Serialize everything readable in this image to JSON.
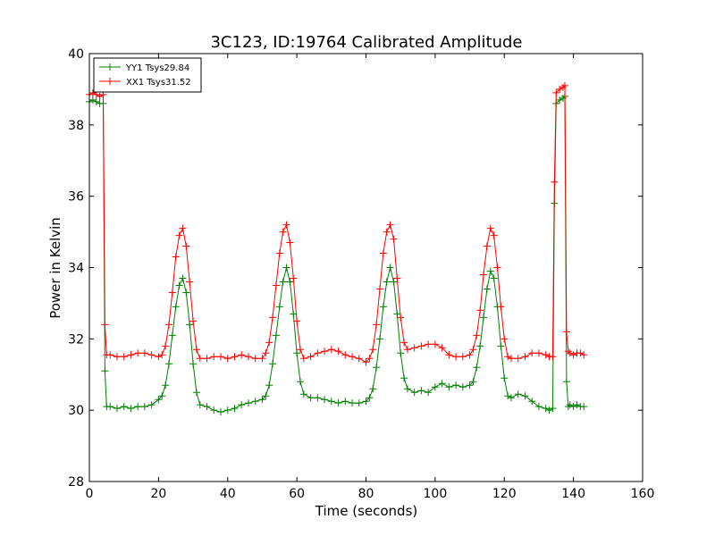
{
  "chart_data": {
    "type": "line",
    "title": "3C123, ID:19764 Calibrated Amplitude",
    "xlabel": "Time (seconds)",
    "ylabel": "Power in Kelvin",
    "xlim": [
      0,
      160
    ],
    "ylim": [
      28,
      40
    ],
    "xticks": [
      0,
      20,
      40,
      60,
      80,
      100,
      120,
      140,
      160
    ],
    "yticks": [
      28,
      30,
      32,
      34,
      36,
      38,
      40
    ],
    "grid": false,
    "legend_position": "top-left",
    "marker": "plus",
    "series": [
      {
        "name": "YY1 Tsys29.84",
        "color": "#008000",
        "x": [
          0,
          1,
          2,
          3,
          4,
          4.5,
          5,
          6,
          8,
          10,
          12,
          14,
          16,
          18,
          20,
          21,
          22,
          23,
          24,
          25,
          26,
          27,
          28,
          29,
          30,
          31,
          32,
          34,
          36,
          38,
          40,
          42,
          44,
          46,
          48,
          50,
          51,
          52,
          53,
          54,
          55,
          56,
          57,
          58,
          59,
          60,
          61,
          62,
          64,
          66,
          68,
          70,
          72,
          74,
          76,
          78,
          80,
          81,
          82,
          83,
          84,
          85,
          86,
          87,
          88,
          89,
          90,
          91,
          92,
          94,
          96,
          98,
          100,
          102,
          104,
          106,
          108,
          110,
          111,
          112,
          113,
          114,
          115,
          116,
          117,
          118,
          119,
          120,
          121,
          122,
          124,
          126,
          128,
          130,
          132,
          133,
          134,
          134.5,
          135,
          136,
          137,
          137.5,
          138,
          138.5,
          139,
          140,
          141,
          142,
          143
        ],
        "values": [
          38.65,
          38.7,
          38.65,
          38.6,
          38.6,
          31.1,
          30.1,
          30.1,
          30.05,
          30.1,
          30.05,
          30.1,
          30.1,
          30.15,
          30.3,
          30.4,
          30.7,
          31.3,
          32.1,
          32.9,
          33.5,
          33.7,
          33.3,
          32.4,
          31.3,
          30.5,
          30.15,
          30.1,
          30.0,
          29.95,
          30.0,
          30.05,
          30.15,
          30.2,
          30.25,
          30.3,
          30.4,
          30.7,
          31.3,
          32.1,
          32.9,
          33.6,
          34.0,
          33.6,
          32.7,
          31.6,
          30.8,
          30.45,
          30.35,
          30.35,
          30.3,
          30.25,
          30.2,
          30.25,
          30.2,
          30.2,
          30.25,
          30.35,
          30.6,
          31.2,
          32.0,
          32.9,
          33.6,
          34.0,
          33.6,
          32.7,
          31.6,
          30.9,
          30.6,
          30.5,
          30.55,
          30.5,
          30.65,
          30.75,
          30.65,
          30.7,
          30.65,
          30.7,
          30.8,
          31.2,
          31.8,
          32.6,
          33.4,
          33.9,
          33.7,
          32.9,
          31.8,
          30.9,
          30.4,
          30.35,
          30.45,
          30.4,
          30.25,
          30.1,
          30.05,
          30.0,
          30.05,
          35.8,
          38.6,
          38.7,
          38.75,
          38.8,
          30.8,
          30.1,
          30.15,
          30.1,
          30.15,
          30.1,
          30.1
        ]
      },
      {
        "name": "XX1 Tsys31.52",
        "color": "#ff0000",
        "x": [
          0,
          1,
          2,
          3,
          4,
          4.5,
          5,
          6,
          8,
          10,
          12,
          14,
          16,
          18,
          20,
          21,
          22,
          23,
          24,
          25,
          26,
          27,
          28,
          29,
          30,
          31,
          32,
          34,
          36,
          38,
          40,
          42,
          44,
          46,
          48,
          50,
          51,
          52,
          53,
          54,
          55,
          56,
          57,
          58,
          59,
          60,
          61,
          62,
          64,
          66,
          68,
          70,
          72,
          74,
          76,
          78,
          80,
          81,
          82,
          83,
          84,
          85,
          86,
          87,
          88,
          89,
          90,
          91,
          92,
          94,
          96,
          98,
          100,
          102,
          104,
          106,
          108,
          110,
          111,
          112,
          113,
          114,
          115,
          116,
          117,
          118,
          119,
          120,
          121,
          122,
          124,
          126,
          128,
          130,
          132,
          133,
          134,
          134.5,
          135,
          136,
          137,
          137.5,
          138,
          138.5,
          139,
          140,
          141,
          142,
          143
        ],
        "values": [
          38.85,
          38.9,
          38.85,
          38.8,
          38.85,
          32.4,
          31.55,
          31.55,
          31.5,
          31.5,
          31.55,
          31.6,
          31.6,
          31.55,
          31.5,
          31.55,
          31.8,
          32.4,
          33.3,
          34.3,
          34.9,
          35.1,
          34.6,
          33.6,
          32.5,
          31.7,
          31.45,
          31.45,
          31.5,
          31.5,
          31.45,
          31.5,
          31.55,
          31.5,
          31.45,
          31.45,
          31.6,
          31.9,
          32.6,
          33.5,
          34.4,
          35.0,
          35.2,
          34.7,
          33.7,
          32.5,
          31.7,
          31.45,
          31.5,
          31.6,
          31.65,
          31.7,
          31.65,
          31.55,
          31.5,
          31.45,
          31.35,
          31.45,
          31.7,
          32.4,
          33.4,
          34.4,
          35.0,
          35.2,
          34.8,
          33.7,
          32.6,
          31.9,
          31.7,
          31.75,
          31.8,
          31.85,
          31.85,
          31.75,
          31.55,
          31.5,
          31.5,
          31.55,
          31.7,
          32.1,
          32.8,
          33.8,
          34.6,
          35.1,
          34.9,
          34.0,
          32.9,
          32.0,
          31.5,
          31.45,
          31.45,
          31.5,
          31.6,
          31.6,
          31.55,
          31.5,
          31.5,
          36.4,
          38.9,
          39.0,
          39.05,
          39.1,
          32.2,
          31.65,
          31.6,
          31.55,
          31.6,
          31.6,
          31.55
        ]
      }
    ]
  }
}
